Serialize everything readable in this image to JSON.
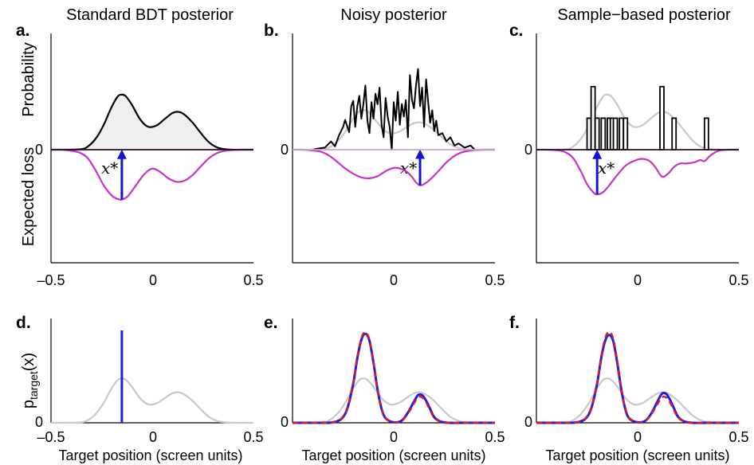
{
  "chart_data": [
    {
      "id": "a",
      "type": "line",
      "panel_letter": "a.",
      "title": "Standard BDT posterior",
      "ylabel_top": "Probability",
      "ylabel_bottom": "Expected loss",
      "xlim": [
        -0.5,
        0.5
      ],
      "xticks": [
        "–0.5",
        "0",
        "0.5"
      ],
      "zero_label": "0",
      "series": [
        {
          "role": "posterior",
          "style": "black-filled",
          "x": [
            -0.5,
            -0.45,
            -0.4,
            -0.35,
            -0.32,
            -0.28,
            -0.24,
            -0.2,
            -0.17,
            -0.15,
            -0.13,
            -0.1,
            -0.06,
            -0.02,
            0.02,
            0.06,
            0.1,
            0.13,
            0.16,
            0.2,
            0.24,
            0.28,
            0.32,
            0.36,
            0.4,
            0.45,
            0.5
          ],
          "y": [
            0,
            0,
            0.002,
            0.01,
            0.05,
            0.19,
            0.43,
            0.75,
            0.93,
            0.96,
            0.93,
            0.78,
            0.53,
            0.4,
            0.42,
            0.53,
            0.64,
            0.66,
            0.61,
            0.47,
            0.29,
            0.13,
            0.04,
            0.01,
            0,
            0,
            0
          ]
        },
        {
          "role": "expected-loss",
          "style": "magenta",
          "x": [
            -0.5,
            -0.45,
            -0.4,
            -0.36,
            -0.32,
            -0.28,
            -0.24,
            -0.2,
            -0.17,
            -0.15,
            -0.12,
            -0.08,
            -0.04,
            0,
            0.04,
            0.08,
            0.12,
            0.16,
            0.2,
            0.24,
            0.28,
            0.32,
            0.36,
            0.4,
            0.45,
            0.5
          ],
          "y": [
            0,
            0,
            -0.02,
            -0.05,
            -0.14,
            -0.36,
            -0.62,
            -0.8,
            -0.86,
            -0.87,
            -0.81,
            -0.62,
            -0.43,
            -0.33,
            -0.39,
            -0.5,
            -0.56,
            -0.54,
            -0.44,
            -0.29,
            -0.15,
            -0.06,
            -0.02,
            -0.005,
            0,
            0
          ]
        },
        {
          "role": "arrow",
          "label": "x*",
          "x": -0.15,
          "y_from": -0.87,
          "y_to": -0.01
        }
      ]
    },
    {
      "id": "b",
      "type": "line",
      "panel_letter": "b.",
      "title": "Noisy posterior",
      "xlim": [
        -0.5,
        0.5
      ],
      "xticks": [
        "0",
        "0.5"
      ],
      "zero_label": "0",
      "series": [
        {
          "role": "reference-posterior",
          "style": "grey",
          "x": [
            -0.5,
            -0.45,
            -0.4,
            -0.35,
            -0.32,
            -0.28,
            -0.24,
            -0.2,
            -0.17,
            -0.15,
            -0.13,
            -0.1,
            -0.06,
            -0.02,
            0.02,
            0.06,
            0.1,
            0.13,
            0.16,
            0.2,
            0.24,
            0.28,
            0.32,
            0.36,
            0.4,
            0.45,
            0.5
          ],
          "y": [
            0,
            0,
            0.002,
            0.01,
            0.05,
            0.19,
            0.43,
            0.75,
            0.93,
            0.96,
            0.93,
            0.78,
            0.53,
            0.4,
            0.42,
            0.53,
            0.64,
            0.66,
            0.61,
            0.47,
            0.29,
            0.13,
            0.04,
            0.01,
            0,
            0,
            0
          ]
        },
        {
          "role": "noisy-posterior",
          "style": "black",
          "x": [
            -0.4,
            -0.37,
            -0.34,
            -0.31,
            -0.29,
            -0.27,
            -0.25,
            -0.24,
            -0.22,
            -0.21,
            -0.2,
            -0.19,
            -0.18,
            -0.17,
            -0.16,
            -0.15,
            -0.14,
            -0.13,
            -0.12,
            -0.11,
            -0.1,
            -0.09,
            -0.08,
            -0.07,
            -0.06,
            -0.05,
            -0.04,
            -0.03,
            -0.02,
            -0.01,
            0,
            0.01,
            0.02,
            0.03,
            0.04,
            0.05,
            0.06,
            0.07,
            0.08,
            0.09,
            0.1,
            0.11,
            0.12,
            0.13,
            0.14,
            0.15,
            0.16,
            0.17,
            0.18,
            0.19,
            0.2,
            0.21,
            0.22,
            0.24,
            0.26,
            0.28,
            0.3,
            0.32,
            0.35,
            0.38,
            0.4
          ],
          "y": [
            0,
            0.03,
            0.05,
            0.2,
            0.08,
            0.35,
            0.55,
            0.72,
            0.42,
            1.05,
            1.18,
            0.55,
            1.05,
            1.3,
            0.75,
            1.1,
            1.55,
            0.7,
            0.4,
            1.15,
            0.75,
            1.35,
            1.1,
            1.5,
            0.6,
            0.3,
            1.25,
            0.8,
            0.55,
            0,
            1.15,
            0.7,
            1.4,
            0.6,
            1.1,
            0.8,
            1.2,
            0.3,
            1.8,
            1.2,
            1.0,
            1.55,
            1.95,
            1.05,
            1.5,
            0.55,
            1.7,
            1.15,
            0.65,
            0.95,
            0.45,
            0.7,
            0.35,
            0.4,
            0.2,
            0.3,
            0.1,
            0.15,
            0.05,
            0.1,
            0
          ]
        },
        {
          "role": "expected-loss",
          "style": "magenta",
          "x": [
            -0.5,
            -0.45,
            -0.4,
            -0.36,
            -0.32,
            -0.28,
            -0.24,
            -0.2,
            -0.16,
            -0.12,
            -0.08,
            -0.04,
            0,
            0.04,
            0.08,
            0.11,
            0.13,
            0.15,
            0.18,
            0.22,
            0.26,
            0.3,
            0.34,
            0.38,
            0.42,
            0.46,
            0.5
          ],
          "y": [
            0,
            0,
            -0.02,
            -0.05,
            -0.14,
            -0.29,
            -0.45,
            -0.58,
            -0.67,
            -0.69,
            -0.64,
            -0.52,
            -0.44,
            -0.47,
            -0.6,
            -0.79,
            -0.86,
            -0.83,
            -0.72,
            -0.52,
            -0.31,
            -0.15,
            -0.06,
            -0.02,
            -0.005,
            0,
            0
          ]
        },
        {
          "role": "arrow",
          "label": "x*",
          "x": 0.13,
          "y_from": -0.86,
          "y_to": -0.01
        }
      ]
    },
    {
      "id": "c",
      "type": "bar",
      "panel_letter": "c.",
      "title": "Sample−based posterior",
      "xlim": [
        -0.5,
        0.5
      ],
      "xticks": [
        "0",
        "0.5"
      ],
      "zero_label": "0",
      "series": [
        {
          "role": "reference-posterior",
          "style": "grey",
          "x": [
            -0.5,
            -0.45,
            -0.4,
            -0.35,
            -0.32,
            -0.28,
            -0.24,
            -0.2,
            -0.17,
            -0.15,
            -0.13,
            -0.1,
            -0.06,
            -0.02,
            0.02,
            0.06,
            0.1,
            0.13,
            0.16,
            0.2,
            0.24,
            0.28,
            0.32,
            0.36,
            0.4,
            0.45,
            0.5
          ],
          "y": [
            0,
            0,
            0.002,
            0.01,
            0.05,
            0.19,
            0.43,
            0.75,
            0.93,
            0.96,
            0.93,
            0.78,
            0.53,
            0.4,
            0.42,
            0.53,
            0.64,
            0.66,
            0.61,
            0.47,
            0.29,
            0.13,
            0.04,
            0.01,
            0,
            0,
            0
          ]
        },
        {
          "role": "samples",
          "style": "bars",
          "x": [
            -0.24,
            -0.22,
            -0.2,
            -0.17,
            -0.14,
            -0.125,
            -0.11,
            -0.08,
            -0.06,
            0.12,
            0.18,
            0.34
          ],
          "y": [
            0.55,
            1.1,
            0.55,
            0.55,
            0.55,
            0.55,
            0.55,
            0.55,
            0.55,
            1.1,
            0.55,
            0.55
          ]
        },
        {
          "role": "expected-loss",
          "style": "magenta",
          "x": [
            -0.5,
            -0.45,
            -0.4,
            -0.36,
            -0.32,
            -0.28,
            -0.25,
            -0.22,
            -0.2,
            -0.17,
            -0.14,
            -0.1,
            -0.06,
            -0.02,
            0.02,
            0.06,
            0.09,
            0.12,
            0.15,
            0.18,
            0.21,
            0.24,
            0.28,
            0.31,
            0.33,
            0.36,
            0.4,
            0.45,
            0.5
          ],
          "y": [
            0,
            0,
            -0.01,
            -0.04,
            -0.14,
            -0.38,
            -0.6,
            -0.74,
            -0.78,
            -0.74,
            -0.62,
            -0.44,
            -0.28,
            -0.2,
            -0.16,
            -0.2,
            -0.32,
            -0.47,
            -0.42,
            -0.3,
            -0.24,
            -0.24,
            -0.22,
            -0.18,
            -0.2,
            -0.1,
            -0.02,
            0,
            0
          ]
        },
        {
          "role": "arrow",
          "label": "x*",
          "x": -0.2,
          "y_from": -0.78,
          "y_to": -0.01
        }
      ]
    },
    {
      "id": "d",
      "type": "line",
      "panel_letter": "d.",
      "ylabel_main": "p",
      "ylabel_sub": "target",
      "ylabel_suffix": "(x)",
      "xlabel": "Target position (screen units)",
      "xlim": [
        -0.5,
        0.5
      ],
      "xticks": [
        "–0.5",
        "0",
        "0.5"
      ],
      "zero_label": "0",
      "series": [
        {
          "role": "prior",
          "style": "grey",
          "x": [
            -0.5,
            -0.45,
            -0.4,
            -0.35,
            -0.32,
            -0.28,
            -0.24,
            -0.2,
            -0.17,
            -0.15,
            -0.13,
            -0.1,
            -0.06,
            -0.02,
            0.02,
            0.06,
            0.1,
            0.13,
            0.16,
            0.2,
            0.24,
            0.28,
            0.32,
            0.36,
            0.4,
            0.45,
            0.5
          ],
          "y": [
            0,
            0,
            0.002,
            0.01,
            0.05,
            0.19,
            0.43,
            0.75,
            0.93,
            0.96,
            0.93,
            0.78,
            0.53,
            0.4,
            0.42,
            0.53,
            0.64,
            0.66,
            0.61,
            0.47,
            0.29,
            0.13,
            0.04,
            0.01,
            0,
            0,
            0
          ]
        },
        {
          "role": "delta",
          "style": "blue",
          "x": -0.15,
          "y_from": 0,
          "y_to": 2.0
        }
      ]
    },
    {
      "id": "e",
      "type": "line",
      "panel_letter": "e.",
      "xlabel": "Target position (screen units)",
      "xlim": [
        -0.5,
        0.5
      ],
      "xticks": [
        "0",
        "0.5"
      ],
      "zero_label": "0",
      "series": [
        {
          "role": "prior",
          "style": "grey",
          "x": [
            -0.5,
            -0.45,
            -0.4,
            -0.35,
            -0.32,
            -0.28,
            -0.24,
            -0.2,
            -0.17,
            -0.15,
            -0.13,
            -0.1,
            -0.06,
            -0.02,
            0.02,
            0.06,
            0.1,
            0.13,
            0.16,
            0.2,
            0.24,
            0.28,
            0.32,
            0.36,
            0.4,
            0.45,
            0.5
          ],
          "y": [
            0,
            0,
            0.002,
            0.01,
            0.05,
            0.19,
            0.43,
            0.75,
            0.93,
            0.96,
            0.93,
            0.78,
            0.53,
            0.4,
            0.42,
            0.53,
            0.64,
            0.66,
            0.61,
            0.47,
            0.29,
            0.13,
            0.04,
            0.01,
            0,
            0,
            0
          ]
        },
        {
          "role": "model",
          "style": "blue",
          "x": [
            -0.5,
            -0.35,
            -0.3,
            -0.26,
            -0.23,
            -0.2,
            -0.18,
            -0.16,
            -0.14,
            -0.12,
            -0.1,
            -0.08,
            -0.06,
            -0.04,
            0,
            0.04,
            0.07,
            0.1,
            0.12,
            0.14,
            0.16,
            0.18,
            0.2,
            0.23,
            0.27,
            0.35,
            0.5
          ],
          "y": [
            0,
            0,
            0.01,
            0.08,
            0.3,
            0.85,
            1.4,
            1.8,
            1.93,
            1.78,
            1.3,
            0.72,
            0.3,
            0.1,
            0.01,
            0.05,
            0.22,
            0.46,
            0.6,
            0.6,
            0.48,
            0.3,
            0.12,
            0.03,
            0,
            0,
            0
          ]
        },
        {
          "role": "data",
          "style": "red-dashed",
          "x": [
            -0.5,
            -0.35,
            -0.3,
            -0.26,
            -0.23,
            -0.2,
            -0.18,
            -0.16,
            -0.14,
            -0.12,
            -0.1,
            -0.08,
            -0.06,
            -0.04,
            0,
            0.04,
            0.07,
            0.1,
            0.12,
            0.14,
            0.16,
            0.18,
            0.2,
            0.23,
            0.27,
            0.35,
            0.5
          ],
          "y": [
            0,
            0,
            0.01,
            0.09,
            0.32,
            0.88,
            1.43,
            1.83,
            1.96,
            1.8,
            1.32,
            0.73,
            0.3,
            0.1,
            0.01,
            0.05,
            0.2,
            0.42,
            0.55,
            0.55,
            0.44,
            0.27,
            0.11,
            0.03,
            0,
            0,
            0
          ]
        }
      ]
    },
    {
      "id": "f",
      "type": "line",
      "panel_letter": "f.",
      "xlabel": "Target position (screen units)",
      "xlim": [
        -0.5,
        0.5
      ],
      "xticks": [
        "0",
        "0.5"
      ],
      "zero_label": "0",
      "series": [
        {
          "role": "prior",
          "style": "grey",
          "x": [
            -0.5,
            -0.45,
            -0.4,
            -0.35,
            -0.32,
            -0.28,
            -0.24,
            -0.2,
            -0.17,
            -0.15,
            -0.13,
            -0.1,
            -0.06,
            -0.02,
            0.02,
            0.06,
            0.1,
            0.13,
            0.16,
            0.2,
            0.24,
            0.28,
            0.32,
            0.36,
            0.4,
            0.45,
            0.5
          ],
          "y": [
            0,
            0,
            0.002,
            0.01,
            0.05,
            0.19,
            0.43,
            0.75,
            0.93,
            0.96,
            0.93,
            0.78,
            0.53,
            0.4,
            0.42,
            0.53,
            0.64,
            0.66,
            0.61,
            0.47,
            0.29,
            0.13,
            0.04,
            0.01,
            0,
            0,
            0
          ]
        },
        {
          "role": "model",
          "style": "blue",
          "x": [
            -0.5,
            -0.35,
            -0.3,
            -0.26,
            -0.23,
            -0.2,
            -0.18,
            -0.16,
            -0.14,
            -0.12,
            -0.1,
            -0.08,
            -0.06,
            -0.04,
            0,
            0.04,
            0.07,
            0.1,
            0.12,
            0.14,
            0.16,
            0.18,
            0.2,
            0.23,
            0.27,
            0.35,
            0.5
          ],
          "y": [
            0,
            0,
            0.01,
            0.08,
            0.3,
            0.85,
            1.4,
            1.78,
            1.9,
            1.76,
            1.28,
            0.7,
            0.28,
            0.09,
            0.01,
            0.05,
            0.22,
            0.48,
            0.63,
            0.63,
            0.5,
            0.31,
            0.13,
            0.03,
            0,
            0,
            0
          ]
        },
        {
          "role": "data",
          "style": "red-dashed",
          "x": [
            -0.5,
            -0.35,
            -0.3,
            -0.26,
            -0.23,
            -0.2,
            -0.18,
            -0.16,
            -0.14,
            -0.12,
            -0.1,
            -0.08,
            -0.06,
            -0.04,
            0,
            0.04,
            0.07,
            0.1,
            0.12,
            0.14,
            0.16,
            0.18,
            0.2,
            0.23,
            0.27,
            0.35,
            0.5
          ],
          "y": [
            0,
            0,
            0.01,
            0.09,
            0.32,
            0.88,
            1.44,
            1.84,
            1.97,
            1.81,
            1.33,
            0.74,
            0.3,
            0.1,
            0.01,
            0.05,
            0.2,
            0.42,
            0.55,
            0.55,
            0.44,
            0.27,
            0.11,
            0.03,
            0,
            0,
            0
          ]
        }
      ]
    }
  ],
  "colors": {
    "posterior": "#000000",
    "posterior_fill": "#efefef",
    "reference": "#c8c8c8",
    "expected_loss": "#c832c8",
    "arrow": "#1414d2",
    "model": "#1e1ee6",
    "data": "#e6141e",
    "axis": "#000000"
  }
}
